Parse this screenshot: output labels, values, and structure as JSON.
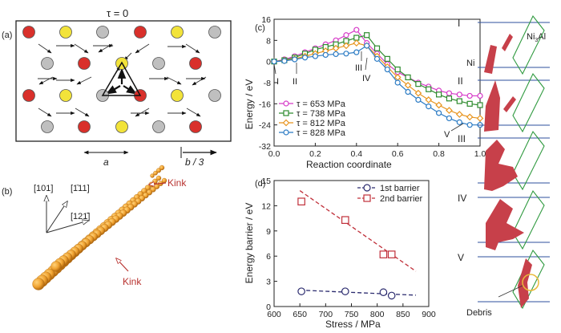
{
  "panel_a": {
    "label": "(a)",
    "title": "τ = 0",
    "a_label": "a",
    "b_label": "b / 3",
    "colors": {
      "red": "#d9302b",
      "yellow": "#f2e33a",
      "gray": "#bfbfbf"
    }
  },
  "panel_b": {
    "label": "(b)",
    "dir1": "[101]",
    "dir2": "[1̄11]",
    "dir3": "[121̄]",
    "kink_top": "Kink",
    "kink_bottom": "Kink"
  },
  "chart_data": [
    {
      "id": "c",
      "type": "line",
      "label": "(c)",
      "xlabel": "Reaction coordinate",
      "ylabel": "Energy / eV",
      "xlim": [
        0,
        1
      ],
      "ylim": [
        -32,
        16
      ],
      "xticks": [
        "0.0",
        "0.2",
        "0.4",
        "0.6",
        "0.8",
        "1.0"
      ],
      "yticks": [
        "16",
        "8",
        "0",
        "-8",
        "-16",
        "-24",
        "-32"
      ],
      "legend_position": "lower-left",
      "annotations": [
        "I",
        "II",
        "III",
        "IV",
        "V"
      ],
      "series": [
        {
          "name": "τ = 653 MPa",
          "color": "#d63ac8",
          "marker": "circle",
          "x": [
            0,
            0.05,
            0.1,
            0.15,
            0.2,
            0.25,
            0.3,
            0.35,
            0.4,
            0.45,
            0.5,
            0.55,
            0.6,
            0.65,
            0.7,
            0.75,
            0.8,
            0.85,
            0.9,
            0.95,
            1.0
          ],
          "y": [
            0,
            0.8,
            2,
            3.5,
            5,
            6.5,
            8,
            10,
            12,
            7,
            3,
            -1,
            -4,
            -6,
            -8,
            -9.5,
            -11,
            -12,
            -12.5,
            -13,
            -13
          ]
        },
        {
          "name": "τ = 738 MPa",
          "color": "#2e8b2e",
          "marker": "square",
          "x": [
            0,
            0.05,
            0.1,
            0.15,
            0.2,
            0.25,
            0.3,
            0.35,
            0.4,
            0.45,
            0.5,
            0.55,
            0.6,
            0.65,
            0.7,
            0.75,
            0.8,
            0.85,
            0.9,
            0.95,
            1.0
          ],
          "y": [
            0,
            0.5,
            1.5,
            3,
            4.5,
            5.5,
            6.5,
            7.8,
            9,
            10,
            5,
            1,
            -3,
            -6,
            -8.5,
            -10.5,
            -12.5,
            -14,
            -15,
            -16,
            -16.5
          ]
        },
        {
          "name": "τ = 812 MPa",
          "color": "#e8951f",
          "marker": "diamond",
          "x": [
            0,
            0.05,
            0.1,
            0.15,
            0.2,
            0.25,
            0.3,
            0.35,
            0.4,
            0.45,
            0.5,
            0.55,
            0.6,
            0.65,
            0.7,
            0.75,
            0.8,
            0.85,
            0.9,
            0.95,
            1.0
          ],
          "y": [
            0,
            0.3,
            1,
            2,
            3,
            4,
            5,
            6,
            7,
            6,
            2,
            -2,
            -6,
            -9,
            -12,
            -14.5,
            -16.5,
            -18.5,
            -20,
            -21,
            -21.5
          ]
        },
        {
          "name": "τ = 828 MPa",
          "color": "#2b7bc4",
          "marker": "circle",
          "x": [
            0,
            0.05,
            0.1,
            0.15,
            0.2,
            0.25,
            0.3,
            0.35,
            0.4,
            0.45,
            0.5,
            0.55,
            0.6,
            0.65,
            0.7,
            0.75,
            0.8,
            0.85,
            0.9,
            0.95,
            1.0
          ],
          "y": [
            0,
            0.2,
            0.8,
            1.5,
            2,
            2.5,
            2.8,
            3,
            3.5,
            6,
            1,
            -3,
            -8,
            -11.5,
            -14.5,
            -17,
            -19.5,
            -21.5,
            -23,
            -24,
            -24
          ]
        }
      ]
    },
    {
      "id": "d",
      "type": "scatter",
      "label": "(d)",
      "xlabel": "Stress /  MPa",
      "ylabel": "Energy barrier / eV",
      "xlim": [
        600,
        900
      ],
      "ylim": [
        0,
        15
      ],
      "xticks": [
        "600",
        "650",
        "700",
        "750",
        "800",
        "850",
        "900"
      ],
      "yticks": [
        "0",
        "3",
        "6",
        "9",
        "12",
        "15"
      ],
      "legend_position": "top-right",
      "series": [
        {
          "name": "1st barrier",
          "color": "#2a2a6e",
          "marker": "circle",
          "x": [
            653,
            738,
            812,
            828
          ],
          "y": [
            1.8,
            1.8,
            1.7,
            1.3
          ],
          "fit": [
            [
              650,
              1.95
            ],
            [
              875,
              1.35
            ]
          ]
        },
        {
          "name": "2nd barrier",
          "color": "#c0303a",
          "marker": "square",
          "x": [
            653,
            738,
            812,
            828
          ],
          "y": [
            12.5,
            10.3,
            6.2,
            6.2
          ],
          "fit": [
            [
              650,
              13.8
            ],
            [
              875,
              4.2
            ]
          ]
        }
      ]
    }
  ],
  "panel_e": {
    "labels": [
      "I",
      "II",
      "III",
      "IV",
      "V"
    ],
    "ni_label": "Ni",
    "ni3al_label": "Ni",
    "ni3al_sub": "3",
    "ni3al_tail": "Al",
    "debris_label": "Debris"
  }
}
